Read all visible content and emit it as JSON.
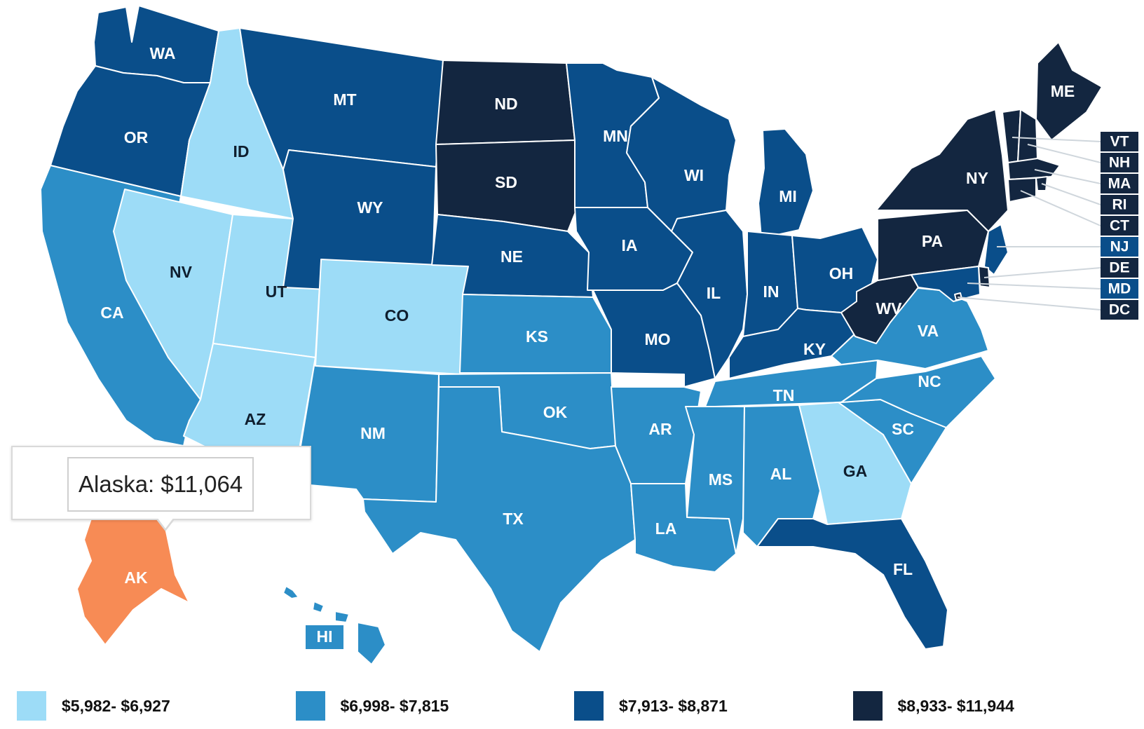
{
  "colors": {
    "tier1": "#9ddcf7",
    "tier2": "#2c8ec7",
    "tier3": "#0a4e8a",
    "tier4": "#132640",
    "highlight": "#f78b55"
  },
  "legend": [
    {
      "label": "$5,982- $6,927",
      "color": "#9ddcf7"
    },
    {
      "label": "$6,998- $7,815",
      "color": "#2c8ec7"
    },
    {
      "label": "$7,913- $8,871",
      "color": "#0a4e8a"
    },
    {
      "label": "$8,933- $11,944",
      "color": "#132640"
    }
  ],
  "tooltip": {
    "text": "Alaska: $11,064"
  },
  "states": [
    {
      "abbr": "WA",
      "tier": 3
    },
    {
      "abbr": "OR",
      "tier": 3
    },
    {
      "abbr": "CA",
      "tier": 2
    },
    {
      "abbr": "ID",
      "tier": 1
    },
    {
      "abbr": "NV",
      "tier": 1
    },
    {
      "abbr": "UT",
      "tier": 1
    },
    {
      "abbr": "AZ",
      "tier": 1
    },
    {
      "abbr": "MT",
      "tier": 3
    },
    {
      "abbr": "WY",
      "tier": 3
    },
    {
      "abbr": "CO",
      "tier": 1
    },
    {
      "abbr": "NM",
      "tier": 2
    },
    {
      "abbr": "ND",
      "tier": 4
    },
    {
      "abbr": "SD",
      "tier": 4
    },
    {
      "abbr": "NE",
      "tier": 3
    },
    {
      "abbr": "KS",
      "tier": 2
    },
    {
      "abbr": "OK",
      "tier": 2
    },
    {
      "abbr": "TX",
      "tier": 2
    },
    {
      "abbr": "MN",
      "tier": 3
    },
    {
      "abbr": "IA",
      "tier": 3
    },
    {
      "abbr": "MO",
      "tier": 3
    },
    {
      "abbr": "AR",
      "tier": 2
    },
    {
      "abbr": "LA",
      "tier": 2
    },
    {
      "abbr": "WI",
      "tier": 3
    },
    {
      "abbr": "IL",
      "tier": 3
    },
    {
      "abbr": "MI",
      "tier": 3
    },
    {
      "abbr": "IN",
      "tier": 3
    },
    {
      "abbr": "OH",
      "tier": 3
    },
    {
      "abbr": "KY",
      "tier": 3
    },
    {
      "abbr": "TN",
      "tier": 2
    },
    {
      "abbr": "MS",
      "tier": 2
    },
    {
      "abbr": "AL",
      "tier": 2
    },
    {
      "abbr": "GA",
      "tier": 1
    },
    {
      "abbr": "FL",
      "tier": 3
    },
    {
      "abbr": "SC",
      "tier": 2
    },
    {
      "abbr": "NC",
      "tier": 2
    },
    {
      "abbr": "VA",
      "tier": 2
    },
    {
      "abbr": "WV",
      "tier": 4
    },
    {
      "abbr": "PA",
      "tier": 4
    },
    {
      "abbr": "NY",
      "tier": 4
    },
    {
      "abbr": "ME",
      "tier": 4
    },
    {
      "abbr": "AK",
      "tier": "highlight"
    },
    {
      "abbr": "HI",
      "tier": 2
    }
  ],
  "small_states": [
    {
      "abbr": "VT",
      "tier": 4
    },
    {
      "abbr": "NH",
      "tier": 4
    },
    {
      "abbr": "MA",
      "tier": 4
    },
    {
      "abbr": "RI",
      "tier": 4
    },
    {
      "abbr": "CT",
      "tier": 4
    },
    {
      "abbr": "NJ",
      "tier": 3
    },
    {
      "abbr": "DE",
      "tier": 4
    },
    {
      "abbr": "MD",
      "tier": 3
    },
    {
      "abbr": "DC",
      "tier": 4
    }
  ]
}
